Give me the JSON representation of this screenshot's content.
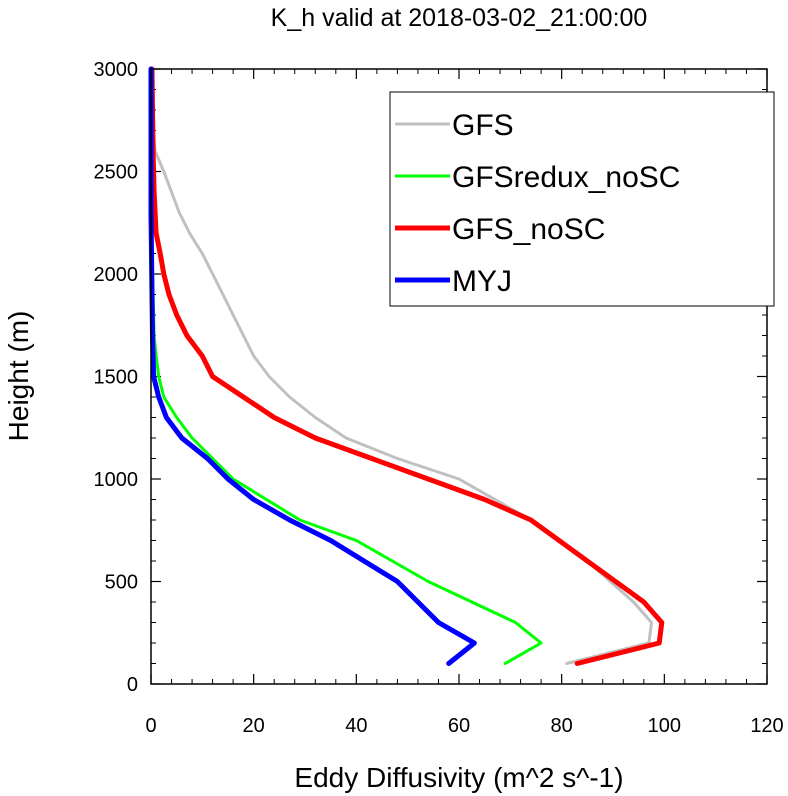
{
  "chart_data": {
    "type": "line",
    "title": "K_h valid at 2018-03-02_21:00:00",
    "xlabel": "Eddy Diffusivity (m^2 s^-1)",
    "ylabel": "Height (m)",
    "xlim": [
      0,
      120
    ],
    "ylim": [
      0,
      3000
    ],
    "xticks": [
      0,
      20,
      40,
      60,
      80,
      100,
      120
    ],
    "yticks": [
      0,
      500,
      1000,
      1500,
      2000,
      2500,
      3000
    ],
    "xtick_labels": [
      "0",
      "20",
      "40",
      "60",
      "80",
      "100",
      "120"
    ],
    "ytick_labels": [
      "0",
      "500",
      "1000",
      "1500",
      "2000",
      "2500",
      "3000"
    ],
    "grid": false,
    "legend_position": "top-right",
    "series": [
      {
        "name": "GFS",
        "color": "#c0c0c0",
        "points": [
          [
            81,
            100
          ],
          [
            97,
            200
          ],
          [
            97.5,
            300
          ],
          [
            94,
            400
          ],
          [
            85,
            600
          ],
          [
            74,
            800
          ],
          [
            60,
            1000
          ],
          [
            48,
            1100
          ],
          [
            38,
            1200
          ],
          [
            32,
            1300
          ],
          [
            27,
            1400
          ],
          [
            23,
            1500
          ],
          [
            20,
            1600
          ],
          [
            18,
            1700
          ],
          [
            16,
            1800
          ],
          [
            14,
            1900
          ],
          [
            12,
            2000
          ],
          [
            10,
            2100
          ],
          [
            7.5,
            2200
          ],
          [
            5.5,
            2300
          ],
          [
            4,
            2400
          ],
          [
            2.5,
            2500
          ],
          [
            0.8,
            2600
          ],
          [
            0.4,
            2700
          ],
          [
            0.2,
            2800
          ],
          [
            0.1,
            2900
          ],
          [
            0.1,
            3000
          ]
        ]
      },
      {
        "name": "GFSredux_noSC",
        "color": "#00ff00",
        "points": [
          [
            69,
            100
          ],
          [
            76,
            200
          ],
          [
            71,
            300
          ],
          [
            54,
            500
          ],
          [
            40,
            700
          ],
          [
            29,
            800
          ],
          [
            16,
            1000
          ],
          [
            12,
            1100
          ],
          [
            8,
            1200
          ],
          [
            5,
            1300
          ],
          [
            2.5,
            1400
          ],
          [
            1.5,
            1500
          ],
          [
            1,
            1600
          ],
          [
            0.6,
            1700
          ],
          [
            0.4,
            1900
          ],
          [
            0.2,
            2100
          ],
          [
            0.1,
            2300
          ],
          [
            0,
            2500
          ],
          [
            0,
            3000
          ]
        ]
      },
      {
        "name": "GFS_noSC",
        "color": "#ff0000",
        "points": [
          [
            83,
            100
          ],
          [
            99,
            200
          ],
          [
            99.5,
            300
          ],
          [
            96,
            400
          ],
          [
            85,
            600
          ],
          [
            74,
            800
          ],
          [
            65,
            900
          ],
          [
            54,
            1000
          ],
          [
            43,
            1100
          ],
          [
            32,
            1200
          ],
          [
            24,
            1300
          ],
          [
            18,
            1400
          ],
          [
            12,
            1500
          ],
          [
            10,
            1600
          ],
          [
            7,
            1700
          ],
          [
            5,
            1800
          ],
          [
            3.5,
            1900
          ],
          [
            2.5,
            2000
          ],
          [
            1.8,
            2100
          ],
          [
            1,
            2200
          ],
          [
            0.6,
            2400
          ],
          [
            0.4,
            2600
          ],
          [
            0.3,
            2800
          ],
          [
            0.2,
            3000
          ]
        ]
      },
      {
        "name": "MYJ",
        "color": "#0000ff",
        "points": [
          [
            58,
            100
          ],
          [
            63,
            200
          ],
          [
            56,
            300
          ],
          [
            48,
            500
          ],
          [
            35,
            700
          ],
          [
            27,
            800
          ],
          [
            20,
            900
          ],
          [
            15,
            1000
          ],
          [
            11,
            1100
          ],
          [
            6,
            1200
          ],
          [
            3,
            1300
          ],
          [
            1.5,
            1400
          ],
          [
            0.5,
            1500
          ],
          [
            0.3,
            1700
          ],
          [
            0.2,
            1900
          ],
          [
            0.1,
            2100
          ],
          [
            0,
            2300
          ],
          [
            0,
            3000
          ]
        ]
      }
    ]
  }
}
